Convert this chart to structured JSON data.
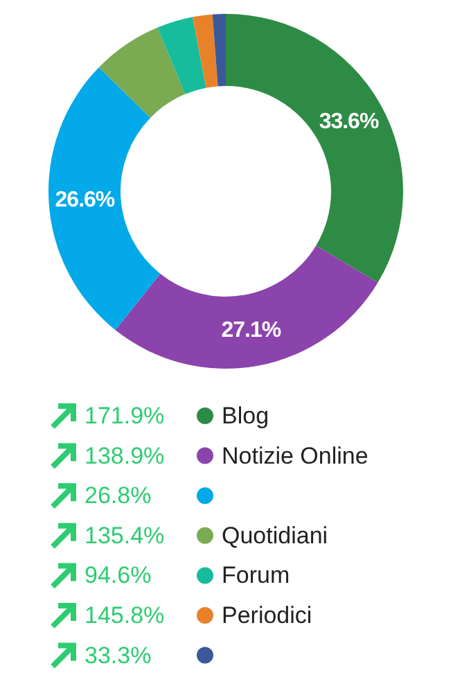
{
  "chart_data": {
    "type": "donut",
    "categories": [
      "Blog",
      "Notizie Online",
      null,
      "Quotidiani",
      "Forum",
      "Periodici",
      null
    ],
    "values": [
      33.6,
      27.1,
      26.6,
      6.4,
      3.3,
      1.8,
      1.2
    ],
    "colors": [
      "#2e8b45",
      "#8b44ab",
      "#03a9e8",
      "#7aab52",
      "#16bc9c",
      "#e8822a",
      "#3b5998"
    ],
    "value_labels": [
      "33.6%",
      "27.1%",
      "26.6%",
      null,
      null,
      null,
      null
    ],
    "annotations": [
      "171.9%",
      "138.9%",
      "26.8%",
      "135.4%",
      "94.6%",
      "145.8%",
      "33.3%"
    ],
    "legend": "bottom"
  }
}
